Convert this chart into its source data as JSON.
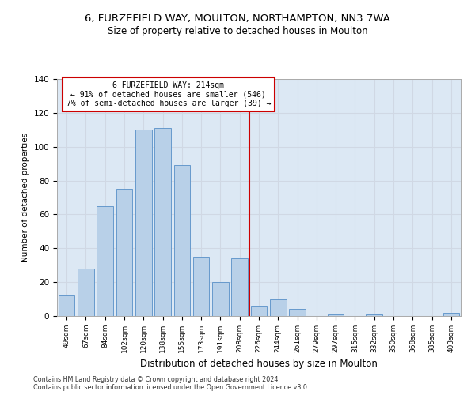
{
  "title1": "6, FURZEFIELD WAY, MOULTON, NORTHAMPTON, NN3 7WA",
  "title2": "Size of property relative to detached houses in Moulton",
  "xlabel": "Distribution of detached houses by size in Moulton",
  "ylabel": "Number of detached properties",
  "categories": [
    "49sqm",
    "67sqm",
    "84sqm",
    "102sqm",
    "120sqm",
    "138sqm",
    "155sqm",
    "173sqm",
    "191sqm",
    "208sqm",
    "226sqm",
    "244sqm",
    "261sqm",
    "279sqm",
    "297sqm",
    "315sqm",
    "332sqm",
    "350sqm",
    "368sqm",
    "385sqm",
    "403sqm"
  ],
  "values": [
    12,
    28,
    65,
    75,
    110,
    111,
    89,
    35,
    20,
    34,
    6,
    10,
    4,
    0,
    1,
    0,
    1,
    0,
    0,
    0,
    2
  ],
  "bar_color": "#b8d0e8",
  "bar_edge_color": "#6699cc",
  "vline_color": "#cc0000",
  "annotation_text": "6 FURZEFIELD WAY: 214sqm\n← 91% of detached houses are smaller (546)\n7% of semi-detached houses are larger (39) →",
  "annotation_box_color": "#ffffff",
  "annotation_box_edge": "#cc0000",
  "grid_color": "#d0d8e4",
  "background_color": "#dce8f4",
  "footer_text": "Contains HM Land Registry data © Crown copyright and database right 2024.\nContains public sector information licensed under the Open Government Licence v3.0.",
  "ylim": [
    0,
    140
  ],
  "vline_idx": 9.5
}
